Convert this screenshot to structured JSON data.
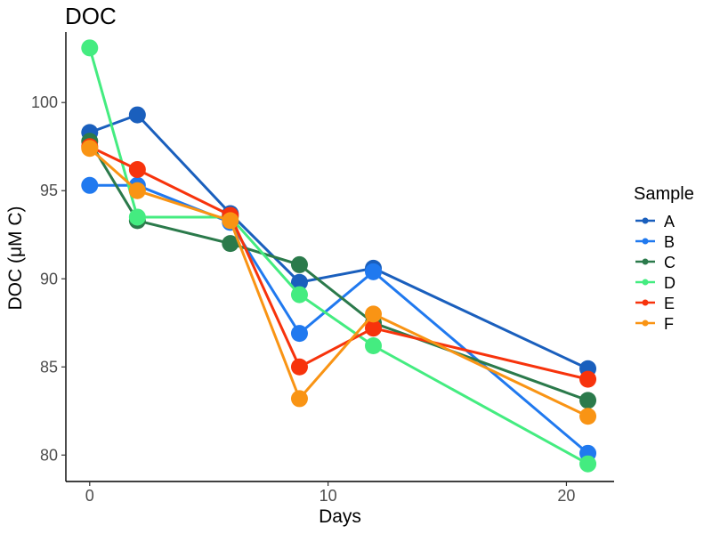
{
  "chart_data": {
    "type": "line",
    "title": "DOC",
    "xlabel": "Days",
    "ylabel": "DOC (μM C)",
    "xlim": [
      -1,
      22
    ],
    "ylim": [
      78.5,
      104
    ],
    "x_ticks": [
      0,
      10,
      20
    ],
    "y_ticks": [
      80,
      85,
      90,
      95,
      100
    ],
    "grid": false,
    "legend": {
      "title": "Sample",
      "placement": "right"
    },
    "x": [
      0,
      2,
      5.9,
      8.8,
      11.9,
      20.9
    ],
    "series": [
      {
        "name": "A",
        "color": "#1a5fbd",
        "values": [
          98.3,
          99.3,
          93.7,
          89.8,
          90.6,
          84.9
        ]
      },
      {
        "name": "B",
        "color": "#2079ef",
        "values": [
          95.3,
          95.3,
          93.2,
          86.9,
          90.4,
          80.1
        ]
      },
      {
        "name": "C",
        "color": "#2b7a4b",
        "values": [
          97.8,
          93.3,
          92.0,
          90.8,
          87.5,
          83.1
        ]
      },
      {
        "name": "D",
        "color": "#44ec80",
        "values": [
          103.1,
          93.5,
          93.5,
          89.1,
          86.2,
          79.5
        ]
      },
      {
        "name": "E",
        "color": "#f7330c",
        "values": [
          97.5,
          96.2,
          93.6,
          85.0,
          87.2,
          84.3
        ]
      },
      {
        "name": "F",
        "color": "#f99414",
        "values": [
          97.4,
          95.0,
          93.3,
          83.2,
          88.0,
          82.2
        ]
      }
    ]
  }
}
